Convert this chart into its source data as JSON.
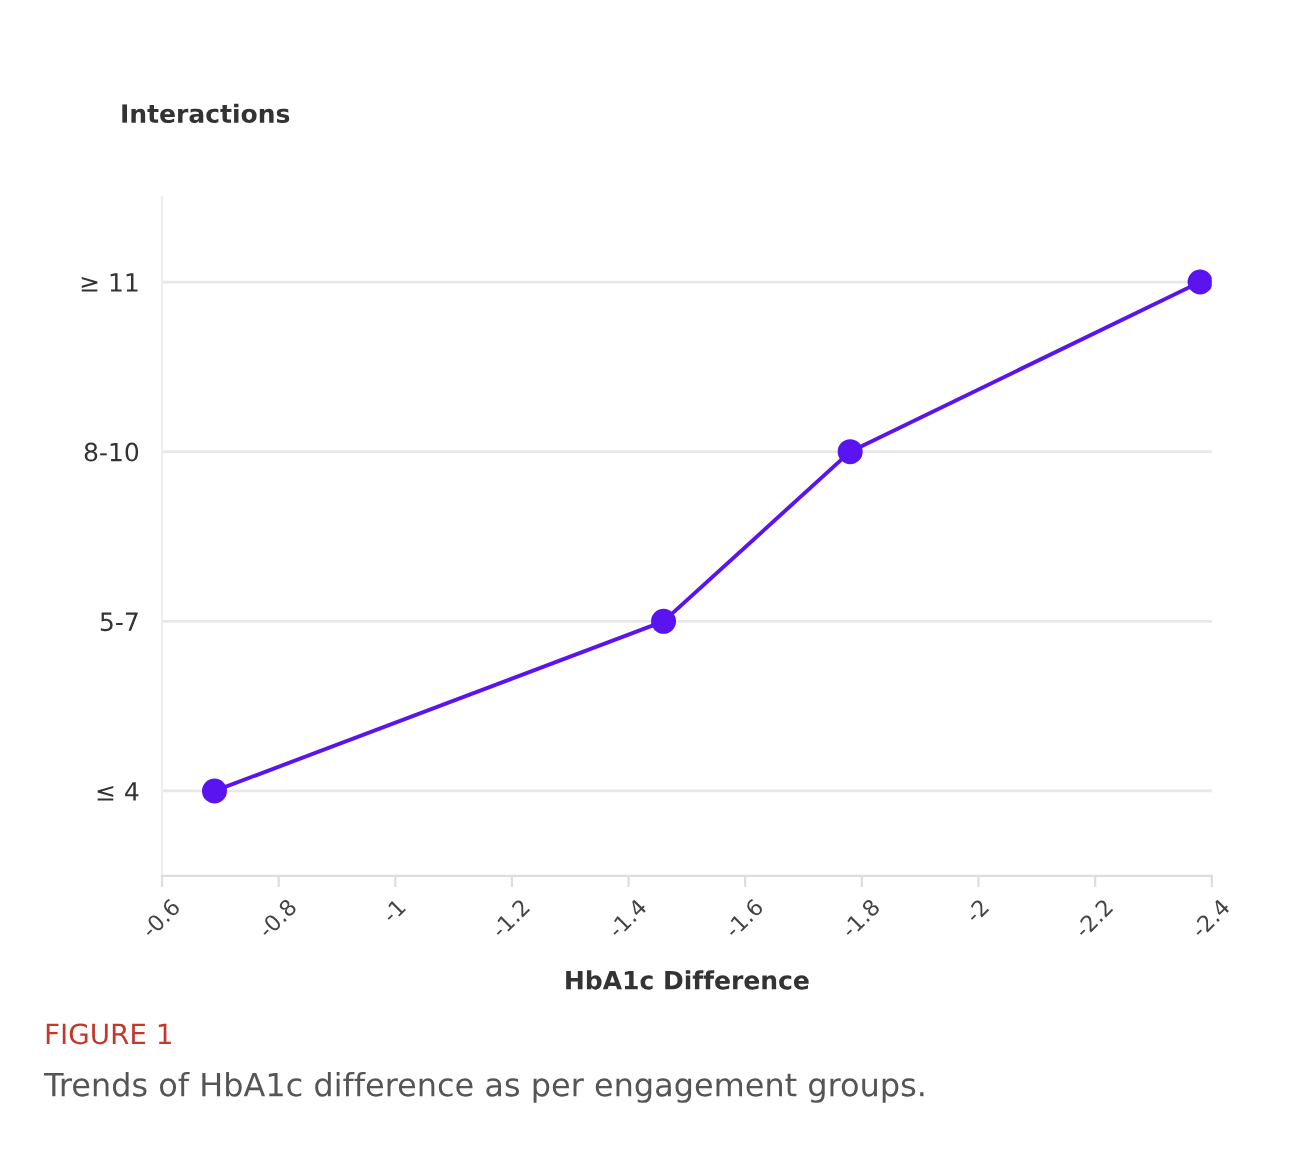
{
  "chart_data": {
    "type": "line",
    "orientation": "horizontal",
    "xlabel": "HbA1c Difference",
    "ylabel": "Interactions",
    "categories": [
      "≥ 11",
      "8-10",
      "5-7",
      "≤ 4"
    ],
    "series": [
      {
        "color": "#5a14f0",
        "values": [
          -2.38,
          -1.78,
          -1.46,
          -0.69
        ]
      }
    ],
    "xlim": [
      -0.6,
      -2.4
    ],
    "xticks": [
      -0.6,
      -0.8,
      -1,
      -1.2,
      -1.4,
      -1.6,
      -1.8,
      -2,
      -2.2,
      -2.4
    ],
    "grid": "y",
    "marker": "circle",
    "line_style": "solid",
    "annotations": [
      "FIGURE 1",
      "Trends of HbA1c difference as per engagement groups."
    ]
  }
}
